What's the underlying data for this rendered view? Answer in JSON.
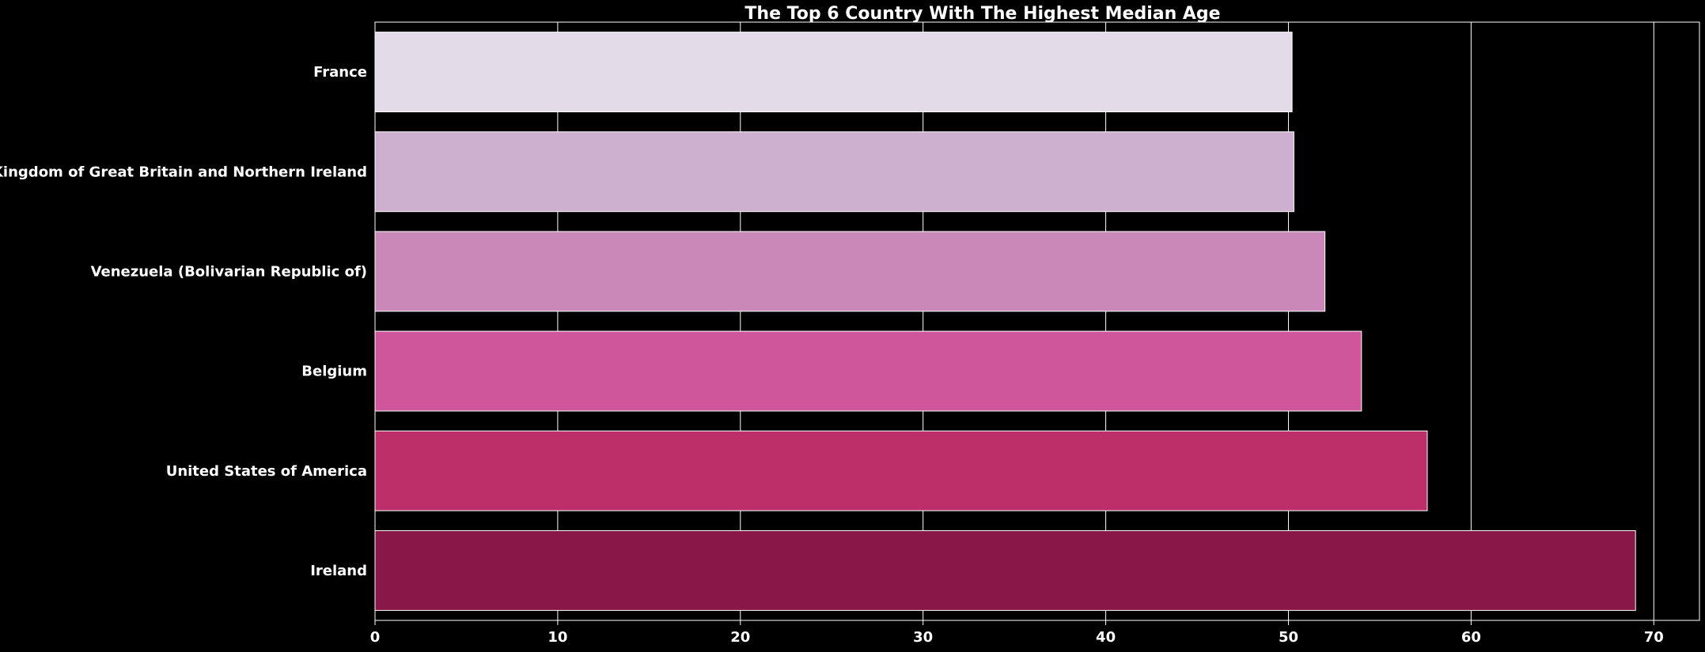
{
  "chart_data": {
    "type": "bar",
    "orientation": "horizontal",
    "title": "The Top 6 Country With The Highest Median Age",
    "xlabel": "",
    "ylabel": "",
    "categories": [
      "France",
      "United Kingdom of Great Britain and Northern Ireland",
      "Venezuela (Bolivarian Republic of)",
      "Belgium",
      "United States of America",
      "Ireland"
    ],
    "values": [
      50.2,
      50.3,
      52.0,
      54.0,
      57.6,
      69.0
    ],
    "colors": [
      "#e3dbe8",
      "#cdb0cf",
      "#c988b7",
      "#d0569c",
      "#bd2f69",
      "#891849"
    ],
    "xlim": [
      0,
      72.5
    ],
    "xticks": [
      0,
      10,
      20,
      30,
      40,
      50,
      60,
      70
    ],
    "grid": true,
    "background": "#000000",
    "text_color": "#ffffff"
  }
}
